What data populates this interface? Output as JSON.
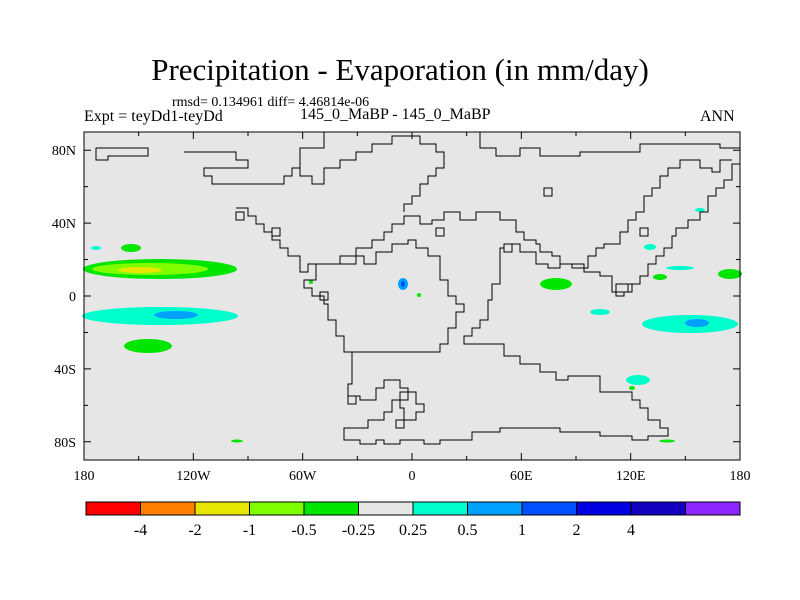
{
  "title": "Precipitation - Evaporation (in mm/day)",
  "stats_line": "rmsd= 0.134961 diff= 4.46814e-06",
  "left_label": "Expt = teyDd1-teyDd",
  "center_label": "145_0_MaBP - 145_0_MaBP",
  "right_label": "ANN",
  "map": {
    "projection": "cylindrical-equidistant",
    "lon_range": [
      -180,
      180
    ],
    "lat_range": [
      -90,
      90
    ],
    "x_ticks": [
      "180",
      "120W",
      "60W",
      "0",
      "60E",
      "120E",
      "180"
    ],
    "y_ticks": [
      "80N",
      "40N",
      "0",
      "40S",
      "80S"
    ],
    "background_color": "#e6e6e6"
  },
  "colorbar": {
    "colors": [
      "#ff0000",
      "#ff8000",
      "#e6e600",
      "#80ff00",
      "#00e600",
      "#e6e6e6",
      "#00ffcc",
      "#00a0ff",
      "#0050ff",
      "#0000e0",
      "#1400c0",
      "#8c28ff"
    ],
    "labels": [
      "-4",
      "-2",
      "-1",
      "-0.5",
      "-0.25",
      "0.25",
      "0.5",
      "1",
      "2",
      "4"
    ]
  },
  "anomaly_regions": [
    {
      "color": "#00e600",
      "level": "-0.25"
    },
    {
      "color": "#80ff00",
      "level": "-0.5"
    },
    {
      "color": "#e6e600",
      "level": "-1"
    },
    {
      "color": "#00ffcc",
      "level": "0.25"
    },
    {
      "color": "#00a0ff",
      "level": "0.5"
    },
    {
      "color": "#0050ff",
      "level": "1"
    }
  ]
}
